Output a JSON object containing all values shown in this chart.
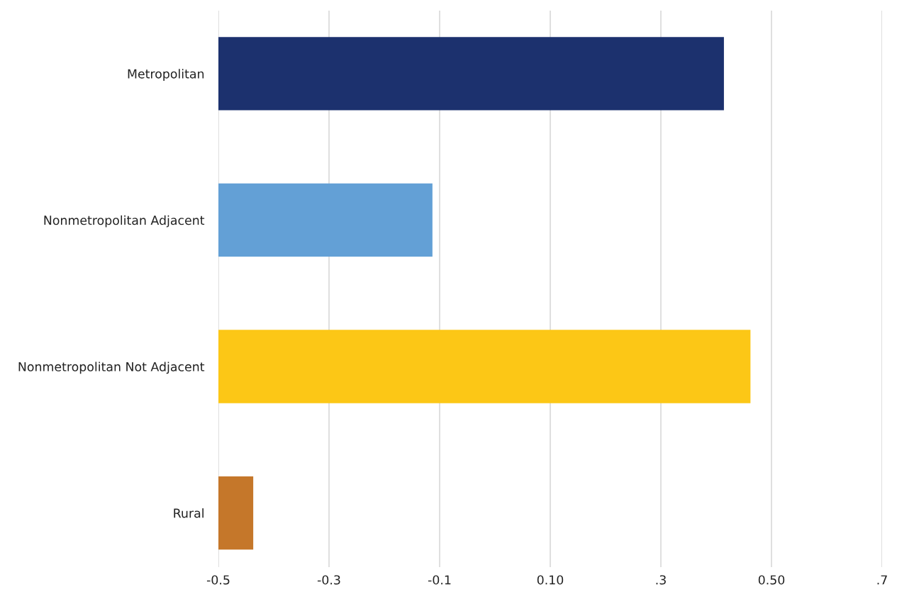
{
  "chart_data": {
    "type": "bar",
    "orientation": "horizontal",
    "categories": [
      "Metropolitan",
      "Nonmetropolitan Adjacent",
      "Nonmetropolitan Not Adjacent",
      "Rural"
    ],
    "base": [
      -0.5,
      -0.5,
      -0.5,
      -0.5
    ],
    "values": [
      0.914,
      0.387,
      0.962,
      0.063
    ],
    "colors": [
      "#1c316e",
      "#63a0d6",
      "#fcc716",
      "#c5772a"
    ],
    "xlim": [
      -0.5,
      0.7
    ],
    "xticks": [
      -0.5,
      -0.3,
      -0.1,
      {
        "value": 0.1,
        "label": "0.10"
      },
      {
        "value": 0.3,
        "label": ".3"
      },
      {
        "value": 0.5,
        "label": "0.50"
      },
      {
        "value": 0.7,
        "label": ".7"
      }
    ],
    "grid": "x",
    "legend": false
  }
}
